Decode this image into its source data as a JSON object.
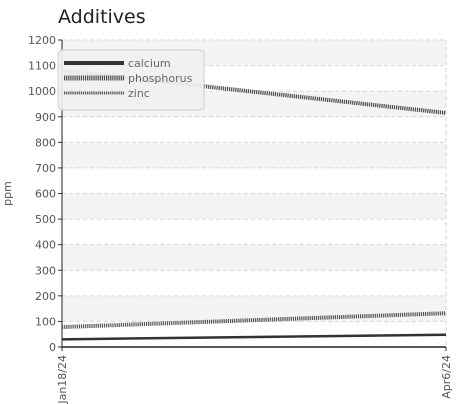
{
  "chart_data": {
    "type": "line",
    "title": "Additives",
    "xlabel": "",
    "ylabel": "ppm",
    "x": [
      "Jan18/24",
      "Apr6/24"
    ],
    "ylim": [
      0,
      1200
    ],
    "yticks": [
      0,
      100,
      200,
      300,
      400,
      500,
      600,
      700,
      800,
      900,
      1000,
      1100,
      1200
    ],
    "grid": true,
    "legend_position": "top-left",
    "series": [
      {
        "name": "calcium",
        "values": [
          30,
          48
        ],
        "color": "#333333",
        "style": "solid"
      },
      {
        "name": "phosphorus",
        "values": [
          1080,
          915
        ],
        "color": "#4a4a4a",
        "style": "dotted"
      },
      {
        "name": "zinc",
        "values": [
          78,
          132
        ],
        "color": "#555555",
        "style": "dotted"
      }
    ]
  }
}
